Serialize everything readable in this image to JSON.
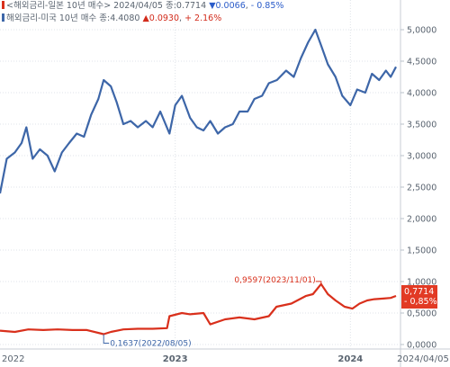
{
  "legend": {
    "japan": {
      "label": "해외금리-일본 10년 매수",
      "date": "2024/04/05",
      "value_text": "종:0.7714",
      "change_text": "▼0.0066",
      "pct_text": "- 0.85%",
      "color": "#d9301c"
    },
    "us": {
      "label": "해외금리-미국 10년 매수",
      "value_text": "종:4.4080",
      "change_text": "▲0.0930",
      "pct_text": "+ 2.16%",
      "color": "#3d66a8"
    }
  },
  "chart_data": {
    "type": "line",
    "x_axis_labels": [
      "2022",
      "2023",
      "2024",
      "2024/04/05"
    ],
    "y_axis": {
      "ticks": [
        "5,0000",
        "4,5000",
        "4,0000",
        "3,5000",
        "3,0000",
        "2,5000",
        "2,0000",
        "1,5000",
        "1,0000",
        "0,5000",
        "0,0000"
      ],
      "ylim": [
        0,
        5.25
      ]
    },
    "grid": true,
    "series": [
      {
        "name": "해외금리-미국 10년 매수",
        "color": "#3d66a8",
        "values": [
          [
            "2022-01-01",
            2.4
          ],
          [
            "2022-01-15",
            2.95
          ],
          [
            "2022-02-01",
            3.05
          ],
          [
            "2022-02-15",
            3.2
          ],
          [
            "2022-02-25",
            3.45
          ],
          [
            "2022-03-10",
            2.95
          ],
          [
            "2022-03-25",
            3.1
          ],
          [
            "2022-04-10",
            3.0
          ],
          [
            "2022-04-25",
            2.75
          ],
          [
            "2022-05-10",
            3.05
          ],
          [
            "2022-05-25",
            3.2
          ],
          [
            "2022-06-10",
            3.35
          ],
          [
            "2022-06-25",
            3.3
          ],
          [
            "2022-07-10",
            3.65
          ],
          [
            "2022-07-25",
            3.9
          ],
          [
            "2022-08-05",
            4.2
          ],
          [
            "2022-08-20",
            4.1
          ],
          [
            "2022-09-01",
            3.85
          ],
          [
            "2022-09-15",
            3.5
          ],
          [
            "2022-09-30",
            3.55
          ],
          [
            "2022-10-15",
            3.45
          ],
          [
            "2022-11-01",
            3.55
          ],
          [
            "2022-11-15",
            3.45
          ],
          [
            "2022-12-01",
            3.7
          ],
          [
            "2022-12-20",
            3.35
          ],
          [
            "2023-01-01",
            3.8
          ],
          [
            "2023-01-15",
            3.95
          ],
          [
            "2023-02-01",
            3.6
          ],
          [
            "2023-02-15",
            3.45
          ],
          [
            "2023-03-01",
            3.4
          ],
          [
            "2023-03-15",
            3.55
          ],
          [
            "2023-03-31",
            3.35
          ],
          [
            "2023-04-15",
            3.45
          ],
          [
            "2023-05-01",
            3.5
          ],
          [
            "2023-05-15",
            3.7
          ],
          [
            "2023-06-01",
            3.7
          ],
          [
            "2023-06-15",
            3.9
          ],
          [
            "2023-07-01",
            3.95
          ],
          [
            "2023-07-15",
            4.15
          ],
          [
            "2023-08-01",
            4.2
          ],
          [
            "2023-08-20",
            4.35
          ],
          [
            "2023-09-05",
            4.25
          ],
          [
            "2023-09-20",
            4.55
          ],
          [
            "2023-10-05",
            4.8
          ],
          [
            "2023-10-20",
            5.0
          ],
          [
            "2023-11-01",
            4.75
          ],
          [
            "2023-11-15",
            4.45
          ],
          [
            "2023-12-01",
            4.25
          ],
          [
            "2023-12-15",
            3.95
          ],
          [
            "2024-01-01",
            3.8
          ],
          [
            "2024-01-15",
            4.05
          ],
          [
            "2024-02-01",
            4.0
          ],
          [
            "2024-02-15",
            4.3
          ],
          [
            "2024-03-01",
            4.2
          ],
          [
            "2024-03-15",
            4.35
          ],
          [
            "2024-03-25",
            4.25
          ],
          [
            "2024-04-05",
            4.41
          ]
        ]
      },
      {
        "name": "해외금리-일본 10년 매수",
        "color": "#d9301c",
        "values": [
          [
            "2022-01-01",
            0.22
          ],
          [
            "2022-02-01",
            0.2
          ],
          [
            "2022-03-01",
            0.24
          ],
          [
            "2022-04-01",
            0.23
          ],
          [
            "2022-05-01",
            0.24
          ],
          [
            "2022-06-01",
            0.23
          ],
          [
            "2022-07-01",
            0.23
          ],
          [
            "2022-08-05",
            0.1637
          ],
          [
            "2022-08-20",
            0.2
          ],
          [
            "2022-09-15",
            0.24
          ],
          [
            "2022-10-15",
            0.25
          ],
          [
            "2022-11-15",
            0.25
          ],
          [
            "2022-12-15",
            0.26
          ],
          [
            "2022-12-20",
            0.45
          ],
          [
            "2023-01-15",
            0.5
          ],
          [
            "2023-02-01",
            0.48
          ],
          [
            "2023-03-01",
            0.5
          ],
          [
            "2023-03-15",
            0.32
          ],
          [
            "2023-04-15",
            0.4
          ],
          [
            "2023-05-15",
            0.43
          ],
          [
            "2023-06-15",
            0.4
          ],
          [
            "2023-07-15",
            0.45
          ],
          [
            "2023-07-31",
            0.6
          ],
          [
            "2023-08-31",
            0.65
          ],
          [
            "2023-09-30",
            0.77
          ],
          [
            "2023-10-15",
            0.8
          ],
          [
            "2023-11-01",
            0.9597
          ],
          [
            "2023-11-15",
            0.8
          ],
          [
            "2023-12-01",
            0.7
          ],
          [
            "2023-12-20",
            0.6
          ],
          [
            "2024-01-05",
            0.57
          ],
          [
            "2024-01-20",
            0.65
          ],
          [
            "2024-02-05",
            0.7
          ],
          [
            "2024-02-20",
            0.72
          ],
          [
            "2024-03-10",
            0.73
          ],
          [
            "2024-03-25",
            0.74
          ],
          [
            "2024-04-05",
            0.7714
          ]
        ]
      }
    ],
    "annotations": [
      {
        "text": "0,1637(2022/08/05)",
        "x": "2022-08-05",
        "y": 0.1637,
        "series": "해외금리-일본 10년 매수"
      },
      {
        "text": "0,9597(2023/11/01)",
        "x": "2023-11-01",
        "y": 0.9597,
        "series": "해외금리-일본 10년 매수"
      }
    ],
    "last_value_badge": {
      "lines": [
        "0,7714",
        "- 0,85%"
      ],
      "value": 0.7714
    }
  }
}
